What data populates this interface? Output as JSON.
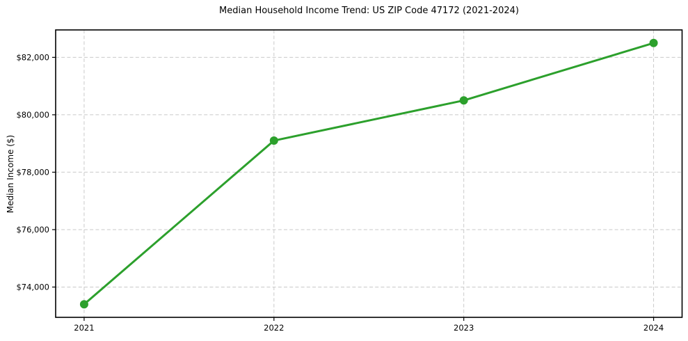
{
  "chart_data": {
    "type": "line",
    "title": "Median Household Income Trend: US ZIP Code 47172 (2021-2024)",
    "xlabel": "",
    "ylabel": "Median Income ($)",
    "x": [
      2021,
      2022,
      2023,
      2024
    ],
    "values": [
      73400,
      79100,
      80500,
      82500
    ],
    "line_color": "#2ca02c",
    "marker": "circle",
    "xticks": {
      "values": [
        2021,
        2022,
        2023,
        2024
      ],
      "labels": [
        "2021",
        "2022",
        "2023",
        "2024"
      ]
    },
    "yticks": {
      "values": [
        74000,
        76000,
        78000,
        80000,
        82000
      ],
      "labels": [
        "$74,000",
        "$76,000",
        "$78,000",
        "$80,000",
        "$82,000"
      ]
    },
    "xlim": [
      2020.85,
      2024.15
    ],
    "ylim": [
      72945,
      82955
    ],
    "grid": true,
    "grid_style": "dashed",
    "grid_color": "#c9c9c9",
    "frame_color": "#000000",
    "background_color": "#ffffff",
    "legend": "none"
  }
}
